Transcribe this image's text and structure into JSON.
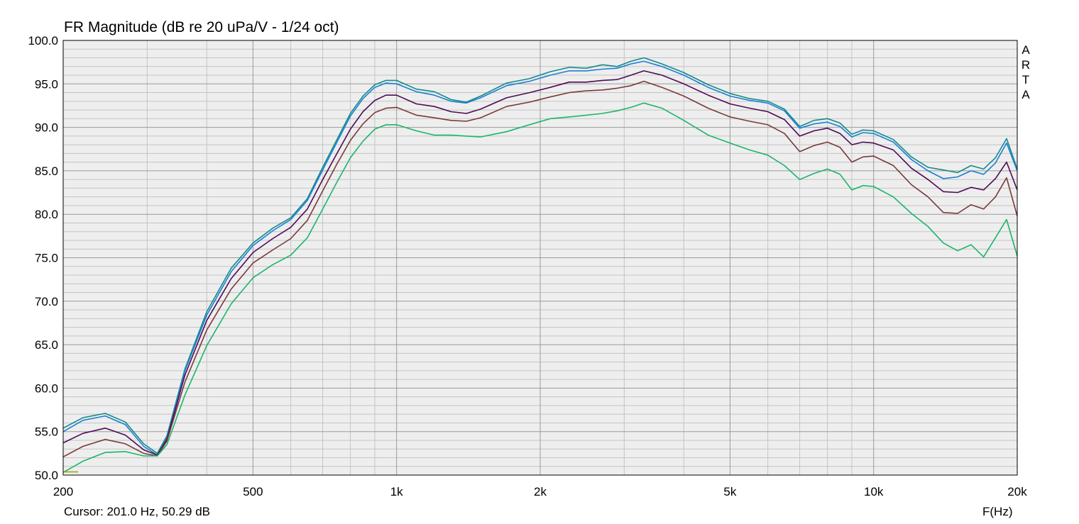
{
  "header": {
    "title": "FR Magnitude (dB re 20 uPa/V - 1/24 oct)"
  },
  "footer": {
    "cursor": "Cursor: 201.0 Hz, 50.29 dB",
    "x_unit": "F(Hz)"
  },
  "brand": [
    "A",
    "R",
    "T",
    "A"
  ],
  "chart_data": {
    "type": "line",
    "title": "FR Magnitude (dB re 20 uPa/V - 1/24 oct)",
    "xlabel": "F(Hz)",
    "ylabel": "",
    "xscale": "log",
    "xlim": [
      200,
      20000
    ],
    "ylim": [
      50,
      100
    ],
    "grid": true,
    "legend": "none",
    "x_ticks": [
      {
        "value": 200,
        "label": "200"
      },
      {
        "value": 500,
        "label": "500"
      },
      {
        "value": 1000,
        "label": "1k"
      },
      {
        "value": 2000,
        "label": "2k"
      },
      {
        "value": 5000,
        "label": "5k"
      },
      {
        "value": 10000,
        "label": "10k"
      },
      {
        "value": 20000,
        "label": "20k"
      }
    ],
    "y_ticks": [
      {
        "value": 100,
        "label": "100.0"
      },
      {
        "value": 95,
        "label": "95.0"
      },
      {
        "value": 90,
        "label": "90.0"
      },
      {
        "value": 85,
        "label": "85.0"
      },
      {
        "value": 80,
        "label": "80.0"
      },
      {
        "value": 75,
        "label": "75.0"
      },
      {
        "value": 70,
        "label": "70.0"
      },
      {
        "value": 65,
        "label": "65.0"
      },
      {
        "value": 60,
        "label": "60.0"
      },
      {
        "value": 55,
        "label": "55.0"
      },
      {
        "value": 50,
        "label": "50.0"
      }
    ],
    "colors": {
      "background": "#eeeeee",
      "grid_major": "#9a9a9a",
      "grid_minor": "#c4c4c4",
      "cursor_marker": "#a0a000"
    },
    "cursor_marker": {
      "x": [
        201,
        215
      ],
      "y": 50.29
    },
    "series": [
      {
        "color": "#138a8a",
        "x": [
          200,
          220,
          245,
          270,
          295,
          315,
          330,
          360,
          400,
          450,
          500,
          550,
          600,
          650,
          700,
          750,
          800,
          850,
          900,
          950,
          1000,
          1100,
          1200,
          1300,
          1400,
          1500,
          1700,
          1900,
          2100,
          2300,
          2500,
          2700,
          2900,
          3100,
          3300,
          3600,
          4000,
          4500,
          5000,
          5500,
          6000,
          6500,
          7000,
          7500,
          8000,
          8500,
          9000,
          9500,
          10000,
          11000,
          12000,
          13000,
          14000,
          15000,
          16000,
          17000,
          18000,
          19000,
          20000
        ],
        "y": [
          55.4,
          56.6,
          57.1,
          56.1,
          53.6,
          52.5,
          54.5,
          62.2,
          68.8,
          73.8,
          76.7,
          78.4,
          79.6,
          81.8,
          85.4,
          88.6,
          91.6,
          93.6,
          94.9,
          95.4,
          95.4,
          94.4,
          94.1,
          93.2,
          92.9,
          93.6,
          95.1,
          95.6,
          96.4,
          96.9,
          96.8,
          97.2,
          97.0,
          97.6,
          98.0,
          97.3,
          96.3,
          94.9,
          93.9,
          93.3,
          93.0,
          92.1,
          90.1,
          90.8,
          91.0,
          90.5,
          89.2,
          89.7,
          89.6,
          88.6,
          86.6,
          85.4,
          85.1,
          84.8,
          85.6,
          85.2,
          86.5,
          88.7,
          85.2
        ]
      },
      {
        "color": "#1a7fd6",
        "x": [
          200,
          220,
          245,
          270,
          295,
          315,
          330,
          360,
          400,
          450,
          500,
          550,
          600,
          650,
          700,
          750,
          800,
          850,
          900,
          950,
          1000,
          1100,
          1200,
          1300,
          1400,
          1500,
          1700,
          1900,
          2100,
          2300,
          2500,
          2700,
          2900,
          3100,
          3300,
          3600,
          4000,
          4500,
          5000,
          5500,
          6000,
          6500,
          7000,
          7500,
          8000,
          8500,
          9000,
          9500,
          10000,
          11000,
          12000,
          13000,
          14000,
          15000,
          16000,
          17000,
          18000,
          19000,
          20000
        ],
        "y": [
          55.0,
          56.3,
          56.8,
          55.8,
          53.3,
          52.3,
          54.3,
          62.0,
          68.4,
          73.4,
          76.4,
          78.1,
          79.4,
          81.6,
          85.1,
          88.3,
          91.3,
          93.3,
          94.6,
          95.1,
          95.0,
          94.1,
          93.7,
          93.0,
          92.8,
          93.4,
          94.8,
          95.3,
          96.0,
          96.5,
          96.5,
          96.7,
          96.8,
          97.3,
          97.6,
          97.0,
          96.0,
          94.6,
          93.6,
          93.1,
          92.8,
          91.9,
          89.9,
          90.4,
          90.6,
          90.1,
          88.9,
          89.4,
          89.3,
          88.3,
          86.3,
          85.0,
          84.1,
          84.3,
          85.0,
          84.6,
          85.9,
          88.2,
          85.0
        ]
      },
      {
        "color": "#4f0a54",
        "x": [
          200,
          220,
          245,
          270,
          295,
          315,
          330,
          360,
          400,
          450,
          500,
          550,
          600,
          650,
          700,
          750,
          800,
          850,
          900,
          950,
          1000,
          1100,
          1200,
          1300,
          1400,
          1500,
          1700,
          1900,
          2100,
          2300,
          2500,
          2700,
          2900,
          3100,
          3300,
          3600,
          4000,
          4500,
          5000,
          5500,
          6000,
          6500,
          7000,
          7500,
          8000,
          8500,
          9000,
          9500,
          10000,
          11000,
          12000,
          13000,
          14000,
          15000,
          16000,
          17000,
          18000,
          19000,
          20000
        ],
        "y": [
          53.7,
          54.8,
          55.4,
          54.6,
          52.9,
          52.3,
          54.1,
          61.5,
          67.8,
          72.6,
          75.6,
          77.2,
          78.5,
          80.6,
          84.0,
          87.0,
          89.8,
          91.8,
          93.1,
          93.7,
          93.7,
          92.7,
          92.4,
          91.8,
          91.6,
          92.1,
          93.4,
          94.0,
          94.6,
          95.2,
          95.2,
          95.4,
          95.5,
          96.0,
          96.5,
          96.0,
          95.0,
          93.7,
          92.7,
          92.2,
          91.8,
          90.9,
          89.0,
          89.6,
          89.9,
          89.3,
          88.0,
          88.3,
          88.2,
          87.4,
          85.3,
          84.0,
          82.6,
          82.5,
          83.1,
          82.8,
          84.1,
          86.0,
          82.8
        ]
      },
      {
        "color": "#7a3a3a",
        "x": [
          200,
          220,
          245,
          270,
          295,
          315,
          330,
          360,
          400,
          450,
          500,
          550,
          600,
          650,
          700,
          750,
          800,
          850,
          900,
          950,
          1000,
          1100,
          1200,
          1300,
          1400,
          1500,
          1700,
          1900,
          2100,
          2300,
          2500,
          2700,
          2900,
          3100,
          3300,
          3600,
          4000,
          4500,
          5000,
          5500,
          6000,
          6500,
          7000,
          7500,
          8000,
          8500,
          9000,
          9500,
          10000,
          11000,
          12000,
          13000,
          14000,
          15000,
          16000,
          17000,
          18000,
          19000,
          20000
        ],
        "y": [
          52.1,
          53.3,
          54.1,
          53.6,
          52.5,
          52.2,
          53.9,
          60.7,
          66.7,
          71.4,
          74.4,
          75.9,
          77.2,
          79.3,
          82.7,
          85.8,
          88.5,
          90.4,
          91.7,
          92.2,
          92.3,
          91.4,
          91.1,
          90.8,
          90.7,
          91.1,
          92.4,
          92.9,
          93.5,
          94.0,
          94.2,
          94.3,
          94.5,
          94.8,
          95.3,
          94.6,
          93.6,
          92.2,
          91.2,
          90.7,
          90.3,
          89.3,
          87.2,
          87.9,
          88.3,
          87.7,
          86.0,
          86.6,
          86.7,
          85.6,
          83.4,
          82.0,
          80.2,
          80.1,
          81.1,
          80.6,
          82.0,
          84.2,
          79.8
        ]
      },
      {
        "color": "#1ab56a",
        "x": [
          200,
          220,
          245,
          270,
          295,
          315,
          330,
          360,
          400,
          450,
          500,
          550,
          600,
          650,
          700,
          750,
          800,
          850,
          900,
          950,
          1000,
          1100,
          1200,
          1300,
          1400,
          1500,
          1700,
          1900,
          2100,
          2300,
          2500,
          2700,
          2900,
          3100,
          3300,
          3600,
          4000,
          4500,
          5000,
          5500,
          6000,
          6500,
          7000,
          7500,
          8000,
          8500,
          9000,
          9500,
          10000,
          11000,
          12000,
          13000,
          14000,
          15000,
          16000,
          17000,
          18000,
          19000,
          20000
        ],
        "y": [
          50.3,
          51.6,
          52.6,
          52.7,
          52.2,
          52.2,
          53.5,
          59.2,
          64.9,
          69.7,
          72.7,
          74.2,
          75.3,
          77.3,
          80.6,
          83.7,
          86.5,
          88.4,
          89.8,
          90.3,
          90.3,
          89.6,
          89.1,
          89.1,
          89.0,
          88.9,
          89.5,
          90.3,
          91.0,
          91.2,
          91.4,
          91.6,
          91.9,
          92.3,
          92.8,
          92.2,
          90.8,
          89.1,
          88.2,
          87.4,
          86.8,
          85.6,
          84.0,
          84.7,
          85.2,
          84.6,
          82.8,
          83.3,
          83.2,
          82.0,
          80.1,
          78.6,
          76.7,
          75.8,
          76.5,
          75.1,
          77.3,
          79.4,
          75.2
        ]
      }
    ]
  }
}
